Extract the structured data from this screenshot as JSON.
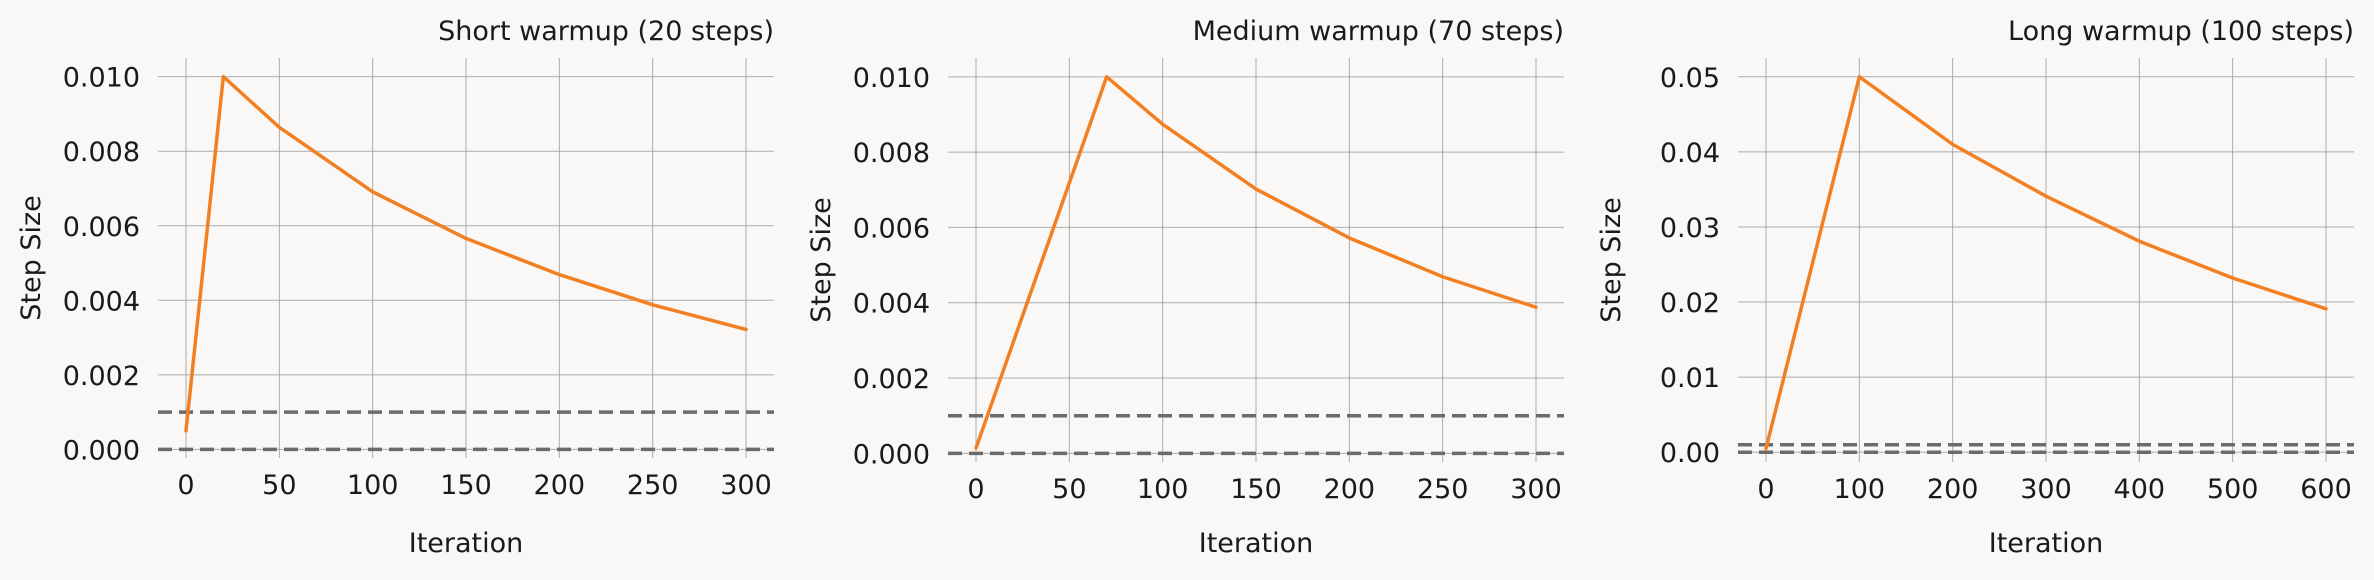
{
  "chart_data": [
    {
      "type": "line",
      "title": "Short warmup (20 steps)",
      "xlabel": "Iteration",
      "ylabel": "Step Size",
      "xlim": [
        -15,
        315
      ],
      "ylim": [
        -0.00023,
        0.0105
      ],
      "xticks": [
        0,
        50,
        100,
        150,
        200,
        250,
        300
      ],
      "xtick_labels": [
        "0",
        "50",
        "100",
        "150",
        "200",
        "250",
        "300"
      ],
      "yticks": [
        0.0,
        0.002,
        0.004,
        0.006,
        0.008,
        0.01
      ],
      "ytick_labels": [
        "0.000",
        "0.002",
        "0.004",
        "0.006",
        "0.008",
        "0.010"
      ],
      "grid": true,
      "series": [
        {
          "color": "#f28022",
          "x": [
            0,
            20,
            50,
            100,
            150,
            200,
            250,
            300
          ],
          "y": [
            0.0005,
            0.01,
            0.00864,
            0.00691,
            0.00566,
            0.00469,
            0.00388,
            0.00322
          ]
        }
      ],
      "hlines": [
        {
          "y": 0.001,
          "style": "dashed",
          "color": "#6b6b6b"
        },
        {
          "y": 0.0,
          "style": "dashed",
          "color": "#6b6b6b"
        }
      ]
    },
    {
      "type": "line",
      "title": "Medium warmup (70 steps)",
      "xlabel": "Iteration",
      "ylabel": "Step Size",
      "xlim": [
        -15,
        315
      ],
      "ylim": [
        -0.00023,
        0.0105
      ],
      "xticks": [
        0,
        50,
        100,
        150,
        200,
        250,
        300
      ],
      "xtick_labels": [
        "0",
        "50",
        "100",
        "150",
        "200",
        "250",
        "300"
      ],
      "yticks": [
        0.0,
        0.002,
        0.004,
        0.006,
        0.008,
        0.01
      ],
      "ytick_labels": [
        "0.000",
        "0.002",
        "0.004",
        "0.006",
        "0.008",
        "0.010"
      ],
      "grid": true,
      "series": [
        {
          "color": "#f28022",
          "x": [
            0,
            70,
            100,
            150,
            200,
            250,
            300
          ],
          "y": [
            0.00014,
            0.01,
            0.00874,
            0.00702,
            0.00572,
            0.00469,
            0.00388
          ]
        }
      ],
      "hlines": [
        {
          "y": 0.001,
          "style": "dashed",
          "color": "#6b6b6b"
        },
        {
          "y": 0.0,
          "style": "dashed",
          "color": "#6b6b6b"
        }
      ]
    },
    {
      "type": "line",
      "title": "Long warmup (100 steps)",
      "xlabel": "Iteration",
      "ylabel": "Step Size",
      "xlim": [
        -30,
        630
      ],
      "ylim": [
        -0.0013,
        0.0525
      ],
      "xticks": [
        0,
        100,
        200,
        300,
        400,
        500,
        600
      ],
      "xtick_labels": [
        "0",
        "100",
        "200",
        "300",
        "400",
        "500",
        "600"
      ],
      "yticks": [
        0.0,
        0.01,
        0.02,
        0.03,
        0.04,
        0.05
      ],
      "ytick_labels": [
        "0.00",
        "0.01",
        "0.02",
        "0.03",
        "0.04",
        "0.05"
      ],
      "grid": true,
      "series": [
        {
          "color": "#f28022",
          "x": [
            0,
            100,
            200,
            300,
            400,
            500,
            600
          ],
          "y": [
            0.0005,
            0.05,
            0.041,
            0.0341,
            0.0281,
            0.0232,
            0.0191
          ]
        }
      ],
      "hlines": [
        {
          "y": 0.001,
          "style": "dashed",
          "color": "#6b6b6b"
        },
        {
          "y": 0.0,
          "style": "dashed",
          "color": "#6b6b6b"
        }
      ]
    }
  ]
}
